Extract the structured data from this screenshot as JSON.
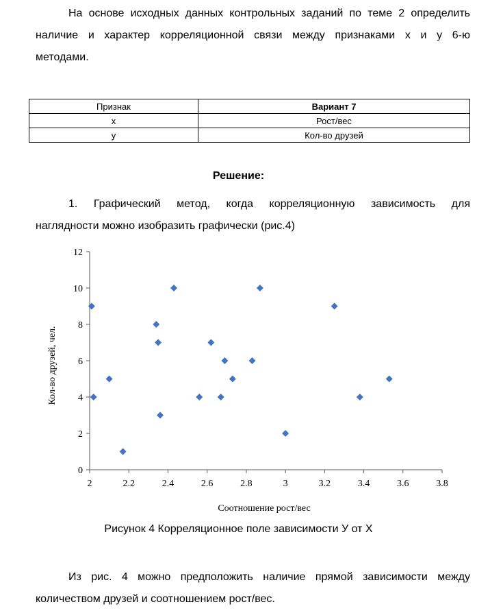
{
  "intro": {
    "lines": [
      "На основе исходных данных контрольных заданий по теме 2 определить",
      "наличие и характер корреляционной связи между признаками x и y 6-ю",
      "методами."
    ]
  },
  "table": {
    "header": [
      "Признак",
      "Вариант 7"
    ],
    "rows": [
      [
        "x",
        "Рост/вес"
      ],
      [
        "y",
        "Кол-во друзей"
      ]
    ]
  },
  "solution_heading": "Решение:",
  "method": {
    "lines": [
      "1. Графический метод, когда корреляционную зависимость для",
      "наглядности можно изобразить графически (рис.4)"
    ]
  },
  "chart_data": {
    "type": "scatter",
    "xlabel": "Соотношение рост/вес",
    "ylabel": "Кол-во друзей, чел.",
    "xlim": [
      2,
      3.8
    ],
    "ylim": [
      0,
      12
    ],
    "xticks": [
      "2",
      "2.2",
      "2.4",
      "2.6",
      "2.8",
      "3",
      "3.2",
      "3.4",
      "3.6",
      "3.8"
    ],
    "yticks": [
      "0",
      "2",
      "4",
      "6",
      "8",
      "10",
      "12"
    ],
    "grid": false,
    "marker": "diamond",
    "color": "#4472c4",
    "points": [
      {
        "x": 2.01,
        "y": 9
      },
      {
        "x": 2.02,
        "y": 4
      },
      {
        "x": 2.1,
        "y": 5
      },
      {
        "x": 2.17,
        "y": 1
      },
      {
        "x": 2.34,
        "y": 8
      },
      {
        "x": 2.35,
        "y": 7
      },
      {
        "x": 2.36,
        "y": 3
      },
      {
        "x": 2.43,
        "y": 10
      },
      {
        "x": 2.56,
        "y": 4
      },
      {
        "x": 2.62,
        "y": 7
      },
      {
        "x": 2.67,
        "y": 4
      },
      {
        "x": 2.69,
        "y": 6
      },
      {
        "x": 2.73,
        "y": 5
      },
      {
        "x": 2.83,
        "y": 6
      },
      {
        "x": 2.87,
        "y": 10
      },
      {
        "x": 3.0,
        "y": 2
      },
      {
        "x": 3.25,
        "y": 9
      },
      {
        "x": 3.38,
        "y": 4
      },
      {
        "x": 3.53,
        "y": 5
      }
    ]
  },
  "caption": "Рисунок 4 Корреляционное поле зависимости У от Х",
  "conclusion": {
    "lines": [
      "Из рис. 4 можно предположить наличие прямой зависимости между",
      "количеством друзей и соотношением рост/вес."
    ]
  }
}
